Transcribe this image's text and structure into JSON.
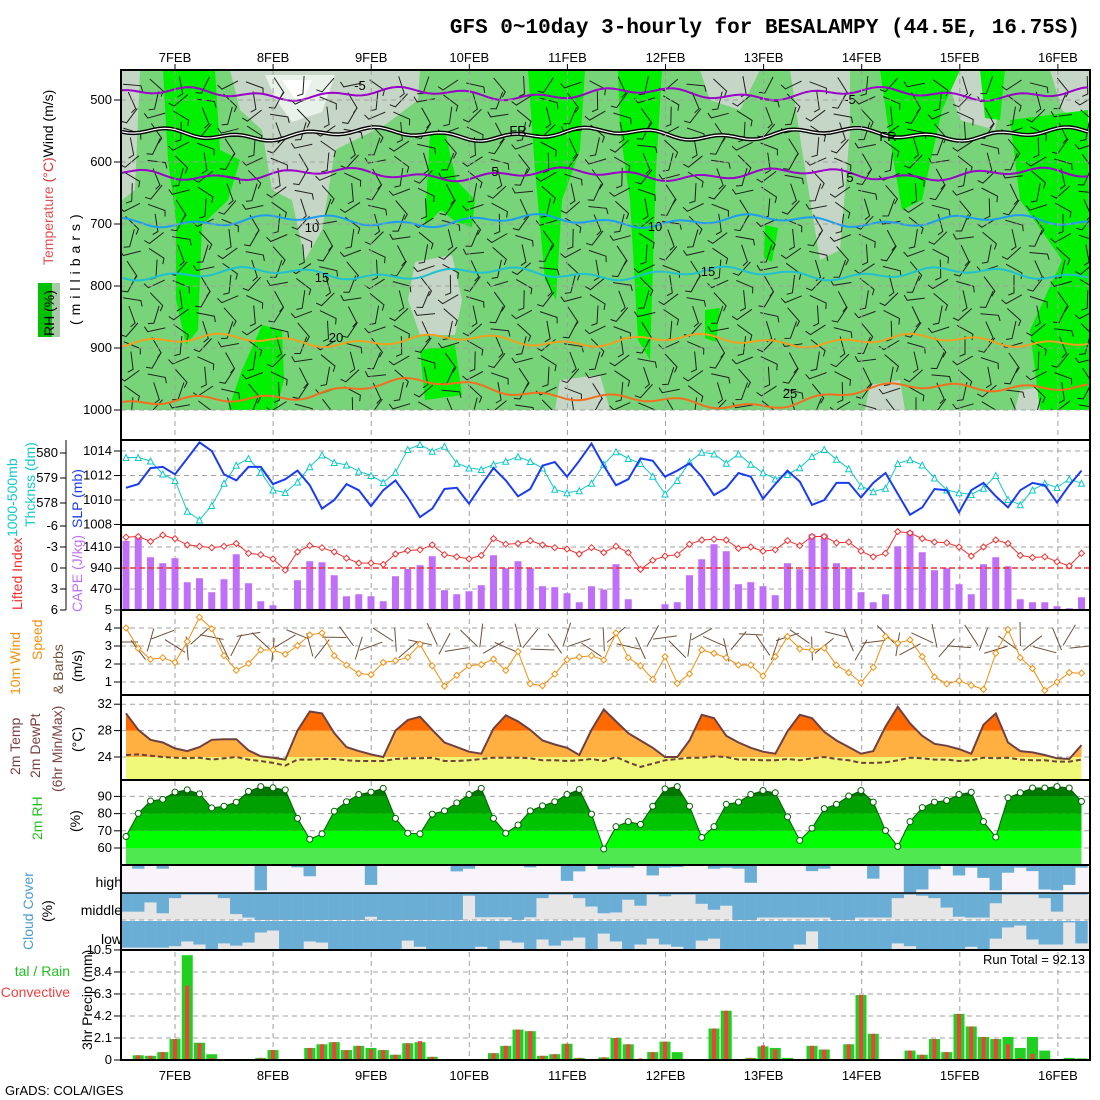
{
  "title": "GFS 0~10day 3-hourly for BESALAMPY (44.5E, 16.75S)",
  "footer": "GrADS: COLA/IGES",
  "dates": [
    "7FEB",
    "8FEB",
    "9FEB",
    "10FEB",
    "11FEB",
    "12FEB",
    "13FEB",
    "14FEB",
    "15FEB",
    "16FEB"
  ],
  "labels": {
    "xsect": {
      "wind": "Wind (m/s)",
      "degc": "(°C)",
      "temperature": "Temperature",
      "rh": "RH (%)",
      "mb": "(millibars)"
    },
    "slp": {
      "thick1": "1000-500mb",
      "thick2": "Thcknss (dm)",
      "slp": "SLP (mb)"
    },
    "li": {
      "li": "Lifted Index",
      "cape": "CAPE (J/kg)"
    },
    "wind": {
      "w1": "10m Wind",
      "w2": "Speed",
      "w3": "& Barbs",
      "w4": "(m/s)"
    },
    "temp": {
      "t1": "2m Temp",
      "t2": "2m DewPt",
      "t3": "(6hr Min/Max)",
      "t4": "(°C)"
    },
    "rh": {
      "r1": "2m RH",
      "r2": "(%)"
    },
    "cloud": {
      "c1": "Cloud Cover",
      "c2": "(%)",
      "high": "high",
      "middle": "middle",
      "low": "low"
    },
    "precip": {
      "p1": "tal / Rain",
      "p2": "Convective",
      "p3": "3hr Precip (mm)",
      "run_total": "Run Total = 92.13"
    }
  },
  "ticks": {
    "pressure": [
      "500",
      "600",
      "700",
      "800",
      "900",
      "1000"
    ],
    "thick": [
      "580",
      "579",
      "578"
    ],
    "slp": [
      "1014",
      "1012",
      "1010",
      "1008"
    ],
    "li": [
      "-6",
      "-3",
      "0",
      "3",
      "6"
    ],
    "cape": [
      "1410",
      "940",
      "470",
      "5"
    ],
    "wind": [
      "4",
      "3",
      "2",
      "1"
    ],
    "temp": [
      "32",
      "28",
      "24"
    ],
    "rh": [
      "90",
      "80",
      "70",
      "60"
    ],
    "precip": [
      "10.5",
      "8.4",
      "6.3",
      "4.2",
      "2.1",
      "0"
    ]
  },
  "colors": {
    "slp": "#1a3cf0",
    "thick": "#10c8c8",
    "li": "#f03030",
    "cape": "#c070f8",
    "wind": "#f09010",
    "barb": "#705038",
    "temp_line": "#704040",
    "t_hot": "#ff6a00",
    "t_warm": "#ffb040",
    "t_cool": "#f0f878",
    "cloud": "#6aaed6",
    "precip_total": "#20d020",
    "precip_conv": "#f04040"
  },
  "contours": [
    {
      "label": "-5",
      "color": "#9a00c8",
      "approx_pressure_mb": 490
    },
    {
      "label": "FR",
      "color": "#000000",
      "approx_pressure_mb": 555
    },
    {
      "label": "5",
      "color": "#9a00c8",
      "approx_pressure_mb": 620
    },
    {
      "label": "10",
      "color": "#1e9cf0",
      "approx_pressure_mb": 695
    },
    {
      "label": "15",
      "color": "#20c0d0",
      "approx_pressure_mb": 780
    },
    {
      "label": "20",
      "color": "#f0a020",
      "approx_pressure_mb": 888
    },
    {
      "label": "25",
      "color": "#f07020",
      "approx_pressure_mb": 975
    }
  ],
  "chart_data": {
    "type": "line",
    "time_step_hours": 3,
    "start": "6FEB 12Z",
    "slp_mb": [
      1011.0,
      1011.3,
      1012.6,
      1012.7,
      1012.1,
      1013.4,
      1014.7,
      1014.0,
      1012.1,
      1011.6,
      1012.7,
      1012.7,
      1011.3,
      1011.7,
      1012.4,
      1011.2,
      1009.3,
      1010.0,
      1011.3,
      1010.8,
      1009.5,
      1010.8,
      1011.6,
      1010.2,
      1008.6,
      1009.3,
      1010.9,
      1011.0,
      1009.7,
      1011.2,
      1012.6,
      1011.6,
      1010.3,
      1010.9,
      1012.8,
      1013.1,
      1011.9,
      1013.2,
      1014.6,
      1012.8,
      1011.2,
      1011.7,
      1013.4,
      1013.2,
      1011.9,
      1012.4,
      1013.0,
      1011.9,
      1010.4,
      1011.0,
      1012.2,
      1011.9,
      1010.1,
      1011.3,
      1012.4,
      1011.5,
      1009.6,
      1010.0,
      1011.4,
      1011.4,
      1010.2,
      1011.4,
      1012.2,
      1010.5,
      1008.8,
      1009.4,
      1010.9,
      1010.8,
      1009.0,
      1010.8,
      1011.4,
      1010.3,
      1009.4,
      1010.8,
      1011.4,
      1011.2,
      1009.8,
      1011.2,
      1012.4
    ],
    "thickness_dm": [
      579.82,
      579.82,
      579.68,
      579.16,
      578.9,
      577.67,
      577.32,
      577.9,
      578.79,
      579.51,
      579.78,
      579.23,
      578.52,
      578.42,
      578.84,
      579.45,
      579.92,
      579.62,
      579.52,
      579.27,
      579.1,
      578.82,
      579.23,
      580.14,
      580.34,
      580.07,
      580.27,
      579.59,
      579.4,
      579.34,
      579.55,
      579.67,
      579.85,
      579.66,
      579.4,
      578.55,
      578.41,
      578.49,
      578.79,
      579.55,
      580.05,
      579.78,
      579.58,
      579.07,
      578.36,
      578.9,
      579.64,
      580.03,
      579.96,
      579.59,
      579.96,
      579.55,
      579.21,
      578.96,
      579.14,
      579.41,
      579.86,
      580.14,
      579.75,
      579.37,
      578.68,
      578.45,
      578.59,
      579.58,
      579.73,
      579.52,
      579.0,
      578.52,
      578.41,
      578.34,
      578.59,
      579.1,
      578.14,
      577.93,
      578.52,
      578.79,
      578.62,
      578.96,
      578.79
    ],
    "lifted_index": [
      -4.4,
      -4.5,
      -3.8,
      -4.7,
      -4.2,
      -3.3,
      -3.1,
      -2.9,
      -3.1,
      -3.5,
      -2.1,
      -1.9,
      -1.3,
      0.3,
      -2.3,
      -3.2,
      -2.9,
      -2.3,
      -1.4,
      -0.7,
      -0.7,
      -0.5,
      -2.0,
      -2.5,
      -2.6,
      -3.3,
      -1.9,
      -1.6,
      -1.3,
      -1.8,
      -4.2,
      -3.4,
      -3.5,
      -3.9,
      -3.3,
      -2.9,
      -2.7,
      -2.0,
      -2.9,
      -2.2,
      -3.1,
      -2.2,
      0.2,
      -1.1,
      -1.7,
      -1.9,
      -3.4,
      -4.0,
      -4.1,
      -4.0,
      -2.8,
      -3.0,
      -2.4,
      -2.6,
      -3.9,
      -3.2,
      -4.5,
      -4.5,
      -3.6,
      -3.7,
      -2.4,
      -1.6,
      -2.1,
      -5.2,
      -5.0,
      -4.2,
      -3.7,
      -3.6,
      -3.0,
      -1.7,
      -3.0,
      -4.0,
      -3.5,
      -1.8,
      -1.5,
      -1.6,
      -0.9,
      -0.3,
      -2.1
    ],
    "cape_jkg": [
      1552,
      1641,
      1186,
      1052,
      1164,
      627,
      716,
      403,
      694,
      1253,
      604,
      201,
      112,
      22,
      672,
      1097,
      1074,
      783,
      313,
      358,
      313,
      201,
      761,
      925,
      1007,
      1208,
      448,
      358,
      425,
      560,
      1231,
      940,
      1097,
      940,
      537,
      515,
      380,
      179,
      537,
      462,
      1030,
      246,
      5,
      15,
      134,
      179,
      783,
      1141,
      1477,
      1320,
      582,
      627,
      537,
      336,
      1052,
      918,
      1701,
      1701,
      1052,
      962,
      403,
      179,
      358,
      1432,
      1775,
      1298,
      895,
      940,
      582,
      358,
      1029,
      1186,
      985,
      246,
      179,
      179,
      90,
      45,
      291
    ],
    "wind_speed_ms": [
      4.0,
      2.87,
      2.26,
      2.35,
      2.09,
      3.25,
      4.6,
      3.96,
      2.46,
      1.65,
      2.03,
      2.78,
      2.78,
      2.54,
      3.02,
      3.62,
      3.72,
      2.46,
      1.94,
      1.47,
      1.41,
      2.09,
      2.18,
      2.37,
      3.1,
      1.9,
      0.77,
      1.37,
      1.9,
      1.97,
      2.27,
      1.64,
      2.69,
      0.9,
      0.79,
      1.44,
      2.24,
      2.39,
      2.46,
      2.22,
      3.72,
      2.35,
      1.9,
      1.15,
      2.41,
      0.92,
      1.45,
      2.78,
      2.59,
      2.35,
      1.94,
      1.94,
      1.33,
      2.41,
      3.53,
      2.84,
      2.78,
      2.88,
      1.94,
      1.52,
      0.96,
      1.81,
      3.53,
      3.16,
      3.34,
      2.41,
      1.28,
      0.9,
      1.07,
      0.81,
      0.59,
      2.6,
      3.91,
      2.35,
      1.75,
      0.53,
      1.0,
      1.52,
      1.49
    ],
    "temp_2m_c": [
      30.6,
      28.1,
      26.6,
      26.2,
      25.3,
      24.9,
      25.5,
      26.6,
      26.7,
      26.7,
      25.0,
      24.1,
      23.9,
      23.6,
      28.0,
      30.9,
      30.6,
      27.6,
      25.5,
      24.9,
      24.4,
      24.0,
      28.0,
      29.6,
      30.1,
      28.1,
      26.2,
      25.5,
      24.8,
      24.5,
      28.3,
      30.3,
      29.4,
      28.1,
      26.5,
      25.9,
      25.4,
      24.3,
      28.1,
      31.2,
      29.4,
      27.6,
      26.5,
      25.4,
      24.0,
      24.0,
      26.5,
      30.4,
      29.9,
      27.2,
      26.2,
      25.4,
      24.8,
      24.5,
      27.9,
      30.4,
      29.9,
      27.8,
      26.5,
      25.5,
      24.5,
      24.9,
      28.6,
      31.6,
      29.1,
      27.2,
      26.0,
      25.7,
      25.2,
      24.5,
      28.9,
      30.6,
      26.2,
      24.9,
      24.7,
      24.3,
      23.8,
      23.7,
      25.8
    ],
    "dewpt_2m_c": [
      24.3,
      24.4,
      24.2,
      24.0,
      23.9,
      23.8,
      23.9,
      23.6,
      23.8,
      24.0,
      23.6,
      23.4,
      23.1,
      22.7,
      23.6,
      23.6,
      23.7,
      23.7,
      23.5,
      23.4,
      23.4,
      23.4,
      23.7,
      23.8,
      23.8,
      23.9,
      23.4,
      23.4,
      23.5,
      23.7,
      23.9,
      23.9,
      23.9,
      23.8,
      23.5,
      23.5,
      23.4,
      23.5,
      23.7,
      23.4,
      24.0,
      23.2,
      22.5,
      23.0,
      23.5,
      23.7,
      23.9,
      23.9,
      24.1,
      24.0,
      23.6,
      23.6,
      23.5,
      23.5,
      23.7,
      23.5,
      23.8,
      24.0,
      23.7,
      23.5,
      23.1,
      23.1,
      23.2,
      23.5,
      23.9,
      23.8,
      23.6,
      23.6,
      23.4,
      23.5,
      23.9,
      23.8,
      23.9,
      23.6,
      23.5,
      23.5,
      23.3,
      23.3,
      23.6
    ],
    "rh_2m_pct": [
      66.7,
      80.1,
      87.3,
      88.3,
      92.5,
      93.8,
      91.5,
      83.3,
      84.3,
      86.6,
      92.9,
      95.7,
      95.0,
      93.8,
      77.2,
      65.1,
      68.2,
      81.4,
      86.9,
      91.1,
      92.5,
      94.7,
      77.2,
      68.6,
      68.2,
      79.7,
      81.6,
      86.2,
      91.1,
      94.7,
      77.2,
      68.6,
      73.4,
      81.6,
      84.5,
      86.9,
      91.1,
      94.0,
      79.7,
      59.4,
      72.4,
      75.3,
      73.7,
      84.3,
      94.4,
      95.7,
      84.3,
      66.1,
      72.4,
      85.4,
      86.7,
      91.1,
      93.4,
      92.1,
      78.1,
      64.4,
      71.5,
      82.9,
      85.4,
      90.2,
      93.4,
      86.7,
      70.1,
      60.9,
      75.3,
      83.5,
      86.7,
      87.6,
      91.1,
      92.4,
      75.3,
      66.3,
      89.2,
      92.1,
      94.9,
      94.9,
      95.7,
      94.9,
      87.1
    ],
    "cloud_high_frac": [
      0,
      0.1,
      0,
      0.1,
      0,
      0,
      0,
      0,
      0,
      0,
      0,
      0.9,
      0,
      0,
      0.05,
      0.38,
      0,
      0,
      0,
      0,
      0.7,
      0,
      0,
      0,
      0,
      0,
      0,
      0.2,
      0.1,
      0,
      0,
      0,
      0,
      0.05,
      0,
      0,
      0.55,
      0.2,
      0,
      0.12,
      0.06,
      0.06,
      0,
      0.35,
      0.06,
      0.04,
      0,
      0,
      0.1,
      0.06,
      0.1,
      0.62,
      0,
      0,
      0,
      0,
      0.19,
      0.1,
      0,
      0,
      0,
      0.47,
      0,
      0,
      0.97,
      0.87,
      0.12,
      0,
      0.35,
      0.06,
      0.44,
      0.9,
      0.25,
      0.06,
      0.19,
      0.87,
      0.9,
      0.7,
      0.06
    ],
    "cloud_mid_frac": [
      0.69,
      0.69,
      0.35,
      0.75,
      0.19,
      0.06,
      0.06,
      0.06,
      0.19,
      0.78,
      0.91,
      1,
      1,
      1,
      1,
      1,
      1,
      1,
      1,
      1,
      0.88,
      1,
      1,
      1,
      1,
      1,
      1,
      1,
      0.1,
      0.9,
      0.9,
      0.9,
      1,
      0.9,
      0.19,
      0.06,
      0.06,
      0.19,
      0.5,
      0.75,
      0.72,
      0.25,
      0.47,
      0.06,
      0.12,
      0.06,
      0.06,
      0.4,
      0.62,
      0.47,
      1,
      1,
      0.91,
      0.91,
      0.91,
      0.91,
      0.91,
      0.91,
      1,
      1,
      0.91,
      0.91,
      0.91,
      0.19,
      0.06,
      0.1,
      0.19,
      0.54,
      0.88,
      0.91,
      0.91,
      0.38,
      0.06,
      0.06,
      0.06,
      0.19,
      0.69,
      0.06,
      0.06
    ],
    "cloud_low_frac": [
      0.95,
      0.95,
      0.95,
      0.95,
      0.9,
      0.73,
      0.84,
      1,
      0.8,
      0.88,
      0.77,
      0.41,
      0.34,
      1,
      1,
      0.73,
      0.77,
      1,
      1,
      1,
      1,
      1,
      1,
      0.7,
      0.92,
      1,
      1,
      1,
      1,
      0.92,
      1,
      0.7,
      0.77,
      1,
      0.66,
      0.88,
      0.7,
      0.59,
      1,
      0.45,
      0.73,
      1,
      0.84,
      0.63,
      0.84,
      0.92,
      1,
      0.7,
      0.63,
      1,
      1,
      1,
      1,
      1,
      1,
      0.84,
      0.37,
      1,
      1,
      1,
      1,
      1,
      1,
      0.8,
      0.9,
      1,
      1,
      1,
      1,
      0.92,
      1,
      0.63,
      0.23,
      0.16,
      0.66,
      0.84,
      0.84,
      0.05,
      0.8
    ],
    "precip_total_mm": [
      0,
      0.45,
      0.4,
      0.75,
      2.0,
      10.0,
      1.65,
      0.55,
      0,
      0,
      0,
      0.2,
      0.95,
      0,
      0,
      1.15,
      1.5,
      1.7,
      0.95,
      1.35,
      1.15,
      0.95,
      0.5,
      1.6,
      1.7,
      0.3,
      0,
      0,
      0,
      0.1,
      0.65,
      1.35,
      2.9,
      2.75,
      0.4,
      0.55,
      1.55,
      0.2,
      0,
      0.25,
      2.1,
      1.5,
      0.1,
      0.75,
      1.75,
      0.75,
      0,
      0,
      3.0,
      4.7,
      0,
      0.2,
      1.3,
      1.15,
      0.2,
      0,
      1.35,
      1.0,
      0,
      1.5,
      6.2,
      2.5,
      0,
      0,
      0.9,
      0.5,
      2.0,
      0.75,
      4.4,
      3.2,
      2.2,
      2.0,
      2.2,
      1.15,
      2.2,
      0.9,
      0,
      0.2,
      0.15
    ],
    "precip_conv_mm": [
      0,
      0.45,
      0.4,
      0.75,
      2.0,
      7.1,
      1.6,
      0.2,
      0,
      0,
      0,
      0.2,
      0.95,
      0,
      0,
      1.15,
      1.5,
      1.7,
      0.95,
      1.35,
      1.0,
      0.95,
      0.5,
      1.6,
      1.8,
      0.3,
      0,
      0,
      0,
      0.1,
      0.65,
      1.35,
      2.9,
      2.75,
      0.4,
      0.55,
      1.55,
      0.2,
      0.1,
      0.25,
      2.1,
      1.5,
      0.15,
      0.75,
      1.75,
      0.1,
      0,
      0,
      3.0,
      4.7,
      0,
      0.2,
      1.4,
      1.0,
      0.1,
      0.1,
      1.35,
      1.0,
      0,
      1.5,
      6.2,
      2.5,
      0,
      0,
      0.9,
      0.5,
      2.0,
      0.75,
      4.4,
      3.2,
      2.2,
      2.0,
      1.5,
      0.2,
      0.6,
      0.1,
      0,
      0.1,
      0.1
    ],
    "ranges": {
      "slp": [
        1008,
        1015
      ],
      "thickness": [
        577,
        580.5
      ],
      "li": [
        -6,
        6
      ],
      "cape": [
        5,
        1880
      ],
      "wind": [
        0,
        4.8
      ],
      "temp": [
        21,
        33
      ],
      "rh": [
        52,
        100
      ],
      "precip": [
        0,
        10.5
      ]
    }
  }
}
